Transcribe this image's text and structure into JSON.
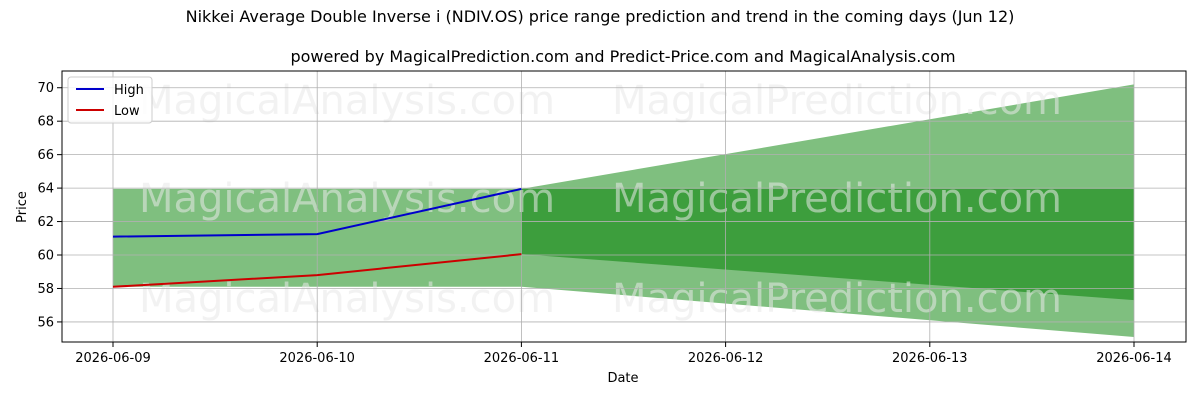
{
  "chart_data": {
    "type": "line",
    "title": "Nikkei Average Double Inverse i (NDIV.OS) price range prediction and trend in the coming days (Jun 12)",
    "subtitle": "powered by MagicalPrediction.com and Predict-Price.com and MagicalAnalysis.com",
    "xlabel": "Date",
    "ylabel": "Price",
    "x_ticks": [
      "2026-06-09",
      "2026-06-10",
      "2026-06-11",
      "2026-06-12",
      "2026-06-13",
      "2026-06-14"
    ],
    "ylim": [
      54.8,
      71.0
    ],
    "y_ticks": [
      56,
      58,
      60,
      62,
      64,
      66,
      68,
      70
    ],
    "grid": true,
    "legend_position": "top-left",
    "watermarks": [
      "MagicalAnalysis.com",
      "MagicalPrediction.com"
    ],
    "series": [
      {
        "name": "High",
        "color": "#0000cc",
        "x": [
          "2026-06-09",
          "2026-06-10",
          "2026-06-11"
        ],
        "values": [
          61.1,
          61.25,
          63.95
        ]
      },
      {
        "name": "Low",
        "color": "#cc0000",
        "x": [
          "2026-06-09",
          "2026-06-10",
          "2026-06-11"
        ],
        "values": [
          58.1,
          58.8,
          60.05
        ]
      }
    ],
    "bands": [
      {
        "color": "#7fbf7f",
        "x": [
          "2026-06-09",
          "2026-06-11"
        ],
        "upper": [
          63.95,
          63.95
        ],
        "lower": [
          58.1,
          58.1
        ]
      },
      {
        "color": "#7fbf7f",
        "x": [
          "2026-06-11",
          "2026-06-14"
        ],
        "upper": [
          63.95,
          70.2
        ],
        "lower": [
          58.1,
          55.1
        ]
      },
      {
        "color": "#3d9e3d",
        "x": [
          "2026-06-11",
          "2026-06-14"
        ],
        "upper": [
          63.95,
          63.95
        ],
        "lower": [
          60.05,
          57.3
        ]
      }
    ]
  }
}
